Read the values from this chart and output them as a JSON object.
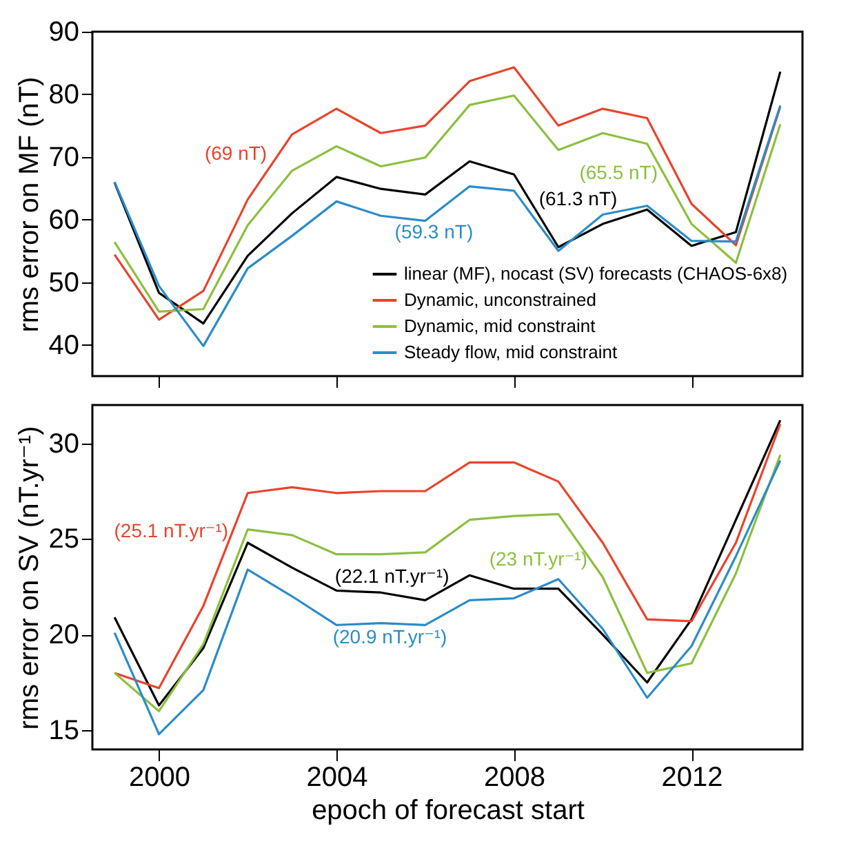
{
  "chart_data": [
    {
      "type": "line",
      "ylabel": "rms error on MF (nT)",
      "x": [
        1999,
        2000,
        2001,
        2002,
        2003,
        2004,
        2005,
        2006,
        2007,
        2008,
        2009,
        2010,
        2011,
        2012,
        2013,
        2014
      ],
      "xlim": [
        1998.5,
        2014.5
      ],
      "xticks": [
        2000,
        2004,
        2008,
        2012
      ],
      "ylim": [
        35,
        90
      ],
      "yticks": [
        40,
        50,
        60,
        70,
        80,
        90
      ],
      "tick_labels": "y",
      "legend": "bottom right",
      "series": [
        {
          "name": "linear (MF), nocast (SV) forecasts (CHAOS-6x8)",
          "color": "#000000",
          "values": [
            65.9,
            48.3,
            43.4,
            54.2,
            61.0,
            66.8,
            64.9,
            64.0,
            69.3,
            67.2,
            55.6,
            59.3,
            61.6,
            55.8,
            58.0,
            83.6
          ]
        },
        {
          "name": "Dynamic, unconstrained",
          "color": "#e8432d",
          "values": [
            54.4,
            44.0,
            48.6,
            63.2,
            73.6,
            77.7,
            73.8,
            75.0,
            82.1,
            84.3,
            75.0,
            77.7,
            76.2,
            62.5,
            55.9,
            78.0
          ]
        },
        {
          "name": "Dynamic, mid constraint",
          "color": "#8cbf3f",
          "values": [
            56.4,
            45.3,
            45.7,
            59.1,
            67.8,
            71.7,
            68.5,
            69.9,
            78.3,
            79.8,
            71.1,
            73.8,
            72.1,
            59.3,
            53.1,
            75.2
          ]
        },
        {
          "name": "Steady flow, mid constraint",
          "color": "#2a8cc8",
          "values": [
            66.0,
            49.4,
            39.8,
            52.2,
            57.4,
            62.9,
            60.6,
            59.8,
            65.3,
            64.6,
            55.0,
            60.8,
            62.2,
            56.6,
            56.5,
            78.2
          ]
        }
      ],
      "annotations": [
        "(61.3 nT)",
        "(69 nT)",
        "(65.5 nT)",
        "(59.3 nT)"
      ]
    },
    {
      "type": "line",
      "ylabel": "rms error on SV (nT.yr⁻¹)",
      "xlabel": "epoch of forecast start",
      "x": [
        1999,
        2000,
        2001,
        2002,
        2003,
        2004,
        2005,
        2006,
        2007,
        2008,
        2009,
        2010,
        2011,
        2012,
        2013,
        2014
      ],
      "xlim": [
        1998.5,
        2014.5
      ],
      "xticks": [
        2000,
        2004,
        2008,
        2012
      ],
      "ylim": [
        14,
        32
      ],
      "yticks": [
        15,
        20,
        25,
        30
      ],
      "series": [
        {
          "color": "#000000",
          "values": [
            20.9,
            16.3,
            19.3,
            24.8,
            23.5,
            22.3,
            22.2,
            21.8,
            23.1,
            22.4,
            22.4,
            20.0,
            17.5,
            20.8,
            26.0,
            31.2
          ]
        },
        {
          "color": "#e8432d",
          "values": [
            18.0,
            17.2,
            21.5,
            27.4,
            27.7,
            27.4,
            27.5,
            27.5,
            29.0,
            29.0,
            28.0,
            24.8,
            20.8,
            20.7,
            24.8,
            31.0
          ]
        },
        {
          "color": "#8cbf3f",
          "values": [
            18.0,
            16.0,
            19.5,
            25.5,
            25.2,
            24.2,
            24.2,
            24.3,
            26.0,
            26.2,
            26.3,
            23.0,
            18.0,
            18.5,
            23.2,
            29.4
          ]
        },
        {
          "color": "#2a8cc8",
          "values": [
            20.1,
            14.8,
            17.1,
            23.4,
            22.0,
            20.5,
            20.6,
            20.5,
            21.8,
            21.9,
            22.9,
            20.3,
            16.7,
            19.4,
            24.1,
            29.1
          ]
        }
      ],
      "annotations": [
        "(22.1 nT.yr⁻¹)",
        "(25.1 nT.yr⁻¹)",
        "(23 nT.yr⁻¹)",
        "(20.9 nT.yr⁻¹)"
      ]
    }
  ]
}
